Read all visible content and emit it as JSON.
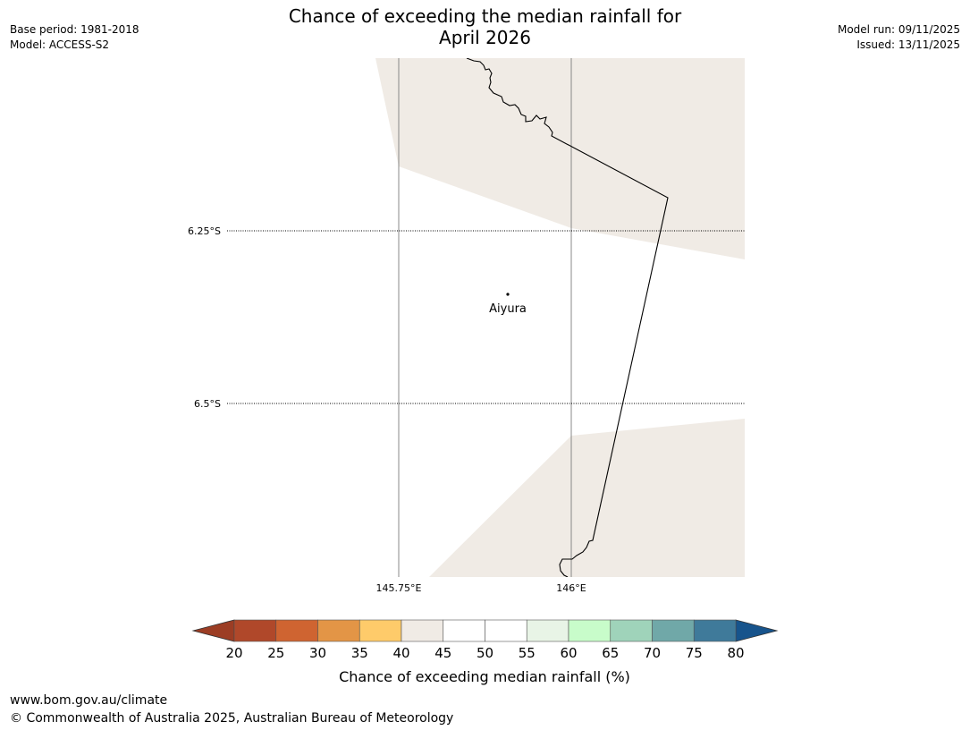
{
  "title": {
    "line1": "Chance of exceeding the median rainfall for",
    "line2": "April 2026"
  },
  "meta_left": {
    "base_period": "Base period: 1981-2018",
    "model": "Model: ACCESS-S2"
  },
  "meta_right": {
    "model_run": "Model run: 09/11/2025",
    "issued": "Issued: 13/11/2025"
  },
  "map": {
    "lat_labels": [
      "6.25°S",
      "6.5°S"
    ],
    "lon_labels": [
      "145.75°E",
      "146°E"
    ],
    "place": "Aiyura",
    "region_color": "#f0ebe5"
  },
  "colorbar": {
    "ticks": [
      "20",
      "25",
      "30",
      "35",
      "40",
      "45",
      "50",
      "55",
      "60",
      "65",
      "70",
      "75",
      "80"
    ],
    "colors": [
      "#b0482a",
      "#cf6431",
      "#e39546",
      "#fecb6a",
      "#f0ebe5",
      "#ffffff",
      "#ffffff",
      "#e8f4e6",
      "#c8fcca",
      "#9fd3ba",
      "#70a8a8",
      "#3f7a9a"
    ],
    "extend_low_color": "#9c3d24",
    "extend_high_color": "#17548c",
    "label": "Chance of exceeding median rainfall (%)"
  },
  "footer": {
    "url": "www.bom.gov.au/climate",
    "copyright": "© Commonwealth of Australia 2025, Australian Bureau of Meteorology"
  }
}
